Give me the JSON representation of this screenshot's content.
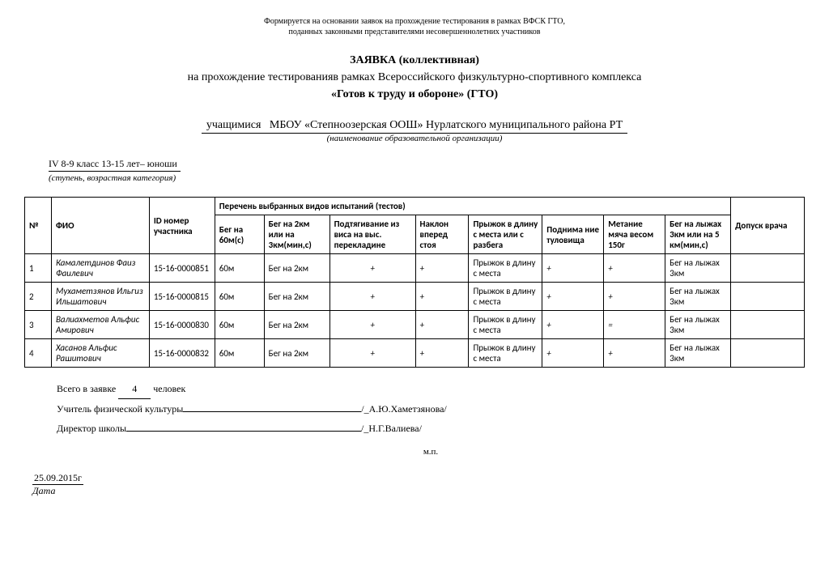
{
  "topNote": {
    "line1": "Формируется на основании заявок на прохождение тестирования в рамках ВФСК ГТО,",
    "line2": "поданных законными представителями несовершеннолетних участников"
  },
  "heading": {
    "title": "ЗАЯВКА (коллективная)",
    "line2": "на прохождение тестированияв рамках Всероссийского физкультурно-спортивного комплекса",
    "line3": "«Готов к труду и обороне» (ГТО)"
  },
  "org": {
    "prefix": "учащимися   МБОУ «Степноозерская ООШ» Нурлатского муниципального района РТ",
    "caption": "(наименование образовательной организации)"
  },
  "stage": {
    "value": "IV  8-9 класс  13-15 лет– юноши",
    "caption": "(ступень, возрастная категория)"
  },
  "table": {
    "headers": {
      "num": "№",
      "fio": "ФИО",
      "id": "ID номер участника",
      "testsGroup": "Перечень выбранных видов испытаний (тестов)",
      "doctor": "Допуск врача",
      "c1": "Бег на 60м(с)",
      "c2": "Бег на 2км или на 3км(мин,с)",
      "c3": "Подтягивание из виса на выс. перекладине",
      "c4": "Наклон вперед стоя",
      "c5": "Прыжок в длину с места или с разбега",
      "c6": "Поднима ние туловища",
      "c7": "Метание мяча весом 150г",
      "c8": "Бег на лыжах 3км или на 5 км(мин,с)"
    },
    "rows": [
      {
        "n": "1",
        "fio": "Камалетдинов Фаиз Фаилевич",
        "id": "15-16-0000851",
        "c1": "60м",
        "c2": "Бег на 2км",
        "c3": "+",
        "c4": "+",
        "c5": "Прыжок в длину с места",
        "c6": "+",
        "c7": "+",
        "c8": "Бег на лыжах 3км",
        "d": ""
      },
      {
        "n": "2",
        "fio": "Мухаметзянов Ильгиз Ильшатович",
        "id": "15-16-0000815",
        "c1": "60м",
        "c2": "Бег на 2км",
        "c3": "+",
        "c4": "+",
        "c5": "Прыжок в длину с места",
        "c6": "+",
        "c7": "+",
        "c8": "Бег на лыжах 3км",
        "d": ""
      },
      {
        "n": "3",
        "fio": "Валиахметов Альфис Амирович",
        "id": "15-16-0000830",
        "c1": "60м",
        "c2": "Бег на 2км",
        "c3": "+",
        "c4": "+",
        "c5": "Прыжок в длину с места",
        "c6": "+",
        "c7": "=",
        "c8": "Бег на лыжах 3км",
        "d": ""
      },
      {
        "n": "4",
        "fio": "Хасанов Альфис Рашитович",
        "id": "15-16-0000832",
        "c1": "60м",
        "c2": "Бег на 2км",
        "c3": "+",
        "c4": "+",
        "c5": "Прыжок в длину с места",
        "c6": "+",
        "c7": "+",
        "c8": "Бег на лыжах 3км",
        "d": ""
      }
    ]
  },
  "footer": {
    "totalPrefix": "Всего в заявке",
    "totalValue": "4",
    "totalSuffix": "человек",
    "teacherLabel": "Учитель физической культуры",
    "teacherName": "/_А.Ю.Хаметзянова/",
    "directorLabel": "Директор школы",
    "directorName": "/_Н.Г.Валиева/",
    "mp": "м.п."
  },
  "date": {
    "value": "25.09.2015г",
    "caption": "Дата"
  }
}
